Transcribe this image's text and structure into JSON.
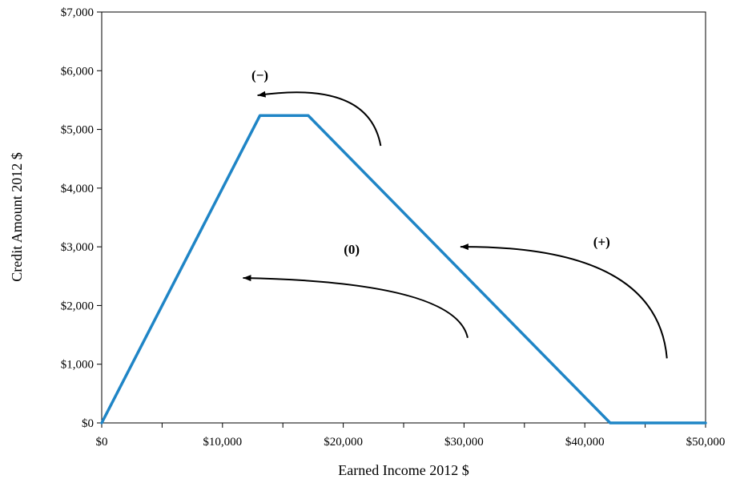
{
  "chart_data": {
    "type": "line",
    "title": "",
    "xlabel": "Earned Income 2012 $",
    "ylabel": "Credit Amount 2012 $",
    "xlim": [
      0,
      50000
    ],
    "ylim": [
      0,
      7000
    ],
    "x_ticks": [
      0,
      10000,
      20000,
      30000,
      40000,
      50000
    ],
    "x_tick_labels": [
      "$0",
      "$10,000",
      "$20,000",
      "$30,000",
      "$40,000",
      "$50,000"
    ],
    "y_ticks": [
      0,
      1000,
      2000,
      3000,
      4000,
      5000,
      6000,
      7000
    ],
    "y_tick_labels": [
      "$0",
      "$1,000",
      "$2,000",
      "$3,000",
      "$4,000",
      "$5,000",
      "$6,000",
      "$7,000"
    ],
    "grid": false,
    "legend": "none",
    "series": [
      {
        "color": "#1f85c6",
        "x": [
          0,
          13100,
          17100,
          42100,
          50000
        ],
        "y": [
          0,
          5236,
          5236,
          0,
          0
        ]
      }
    ],
    "annotations": [
      {
        "text": "(−)",
        "x": 13100,
        "y": 5850
      },
      {
        "text": "(0)",
        "x": 20700,
        "y": 2880
      },
      {
        "text": "(+)",
        "x": 41400,
        "y": 3010
      }
    ],
    "arrows": [
      {
        "from": [
          23100,
          4720
        ],
        "control": [
          22100,
          5850
        ],
        "to": [
          12900,
          5580
        ]
      },
      {
        "from": [
          30300,
          1450
        ],
        "control": [
          29300,
          2400
        ],
        "to": [
          11700,
          2470
        ]
      },
      {
        "from": [
          46800,
          1100
        ],
        "control": [
          46000,
          3020
        ],
        "to": [
          29700,
          3000
        ]
      }
    ]
  }
}
